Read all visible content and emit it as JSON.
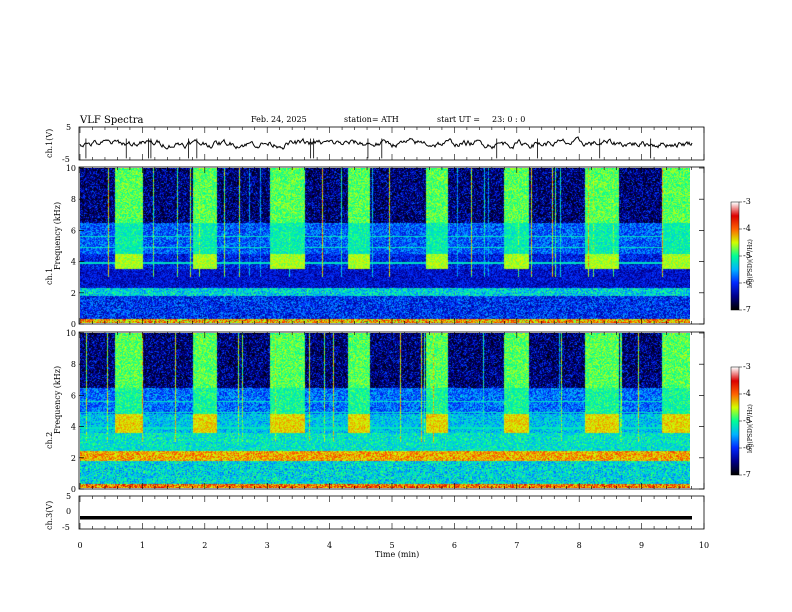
{
  "header": {
    "title": "VLF Spectra",
    "date": "Feb. 24, 2025",
    "station": "station= ATH",
    "start_ut": "start UT =",
    "start_time": "23: 0  : 0"
  },
  "axes": {
    "ch1_label": "ch.1(V)",
    "ch3_label": "ch.3(V)",
    "freq_label_ch1_a": "ch.1",
    "freq_label_ch1_b": "Frequency (kHz)",
    "freq_label_ch2_a": "ch.2",
    "freq_label_ch2_b": "Frequency (kHz)",
    "time_label": "Time  (min)",
    "colorbar_label": "log(PSD)(V²/Hz)"
  },
  "chart_data": [
    {
      "type": "line",
      "name": "ch1-waveform",
      "ylabel": "ch.1(V)",
      "ylim": [
        -5,
        5
      ],
      "yticks": [
        "5",
        "-5"
      ],
      "xlim": [
        0,
        10
      ],
      "note_values": "mean near 0 V with small noise and occasional spikes"
    },
    {
      "type": "heatmap",
      "name": "ch1-spectrogram",
      "ylabel": "Frequency (kHz)",
      "ylim": [
        0,
        10
      ],
      "yticks": [
        "0",
        "2",
        "4",
        "6",
        "8",
        "10"
      ],
      "xlim": [
        0,
        9.8
      ],
      "bursts_min": [
        [
          0.55,
          1.0
        ],
        [
          1.8,
          2.2
        ],
        [
          3.05,
          3.6
        ],
        [
          4.3,
          4.65
        ],
        [
          5.55,
          5.9
        ],
        [
          6.8,
          7.2
        ],
        [
          8.1,
          8.65
        ],
        [
          9.35,
          9.8
        ]
      ],
      "colorbar": {
        "min": -7,
        "max": -3,
        "ticks": [
          "-3",
          "-4",
          "-5",
          "-6",
          "-7"
        ]
      }
    },
    {
      "type": "heatmap",
      "name": "ch2-spectrogram",
      "ylabel": "Frequency (kHz)",
      "ylim": [
        0,
        10
      ],
      "yticks": [
        "0",
        "2",
        "4",
        "6",
        "8",
        "10"
      ],
      "xlim": [
        0,
        9.8
      ],
      "bursts_min": [
        [
          0.55,
          1.0
        ],
        [
          1.8,
          2.2
        ],
        [
          3.05,
          3.6
        ],
        [
          4.3,
          4.65
        ],
        [
          5.55,
          5.9
        ],
        [
          6.8,
          7.2
        ],
        [
          8.1,
          8.65
        ],
        [
          9.35,
          9.8
        ]
      ],
      "colorbar": {
        "min": -7,
        "max": -3,
        "ticks": [
          "-3",
          "-4",
          "-5",
          "-6",
          "-7"
        ]
      }
    },
    {
      "type": "line",
      "name": "ch3-waveform",
      "ylabel": "ch.3(V)",
      "ylim": [
        -5,
        5
      ],
      "yticks": [
        "5",
        "0",
        "-5"
      ],
      "xlim": [
        0,
        10
      ],
      "value": -1.6
    }
  ],
  "xaxis": {
    "xlim": [
      0,
      10
    ],
    "ticks": [
      "0",
      "1",
      "2",
      "3",
      "4",
      "5",
      "6",
      "7",
      "8",
      "9",
      "10"
    ]
  },
  "colors": {
    "colormap": [
      "#000000",
      "#00008c",
      "#0028ff",
      "#00b4ff",
      "#00ff96",
      "#d2ff00",
      "#ff6400",
      "#dc0000",
      "#ffffff"
    ]
  }
}
